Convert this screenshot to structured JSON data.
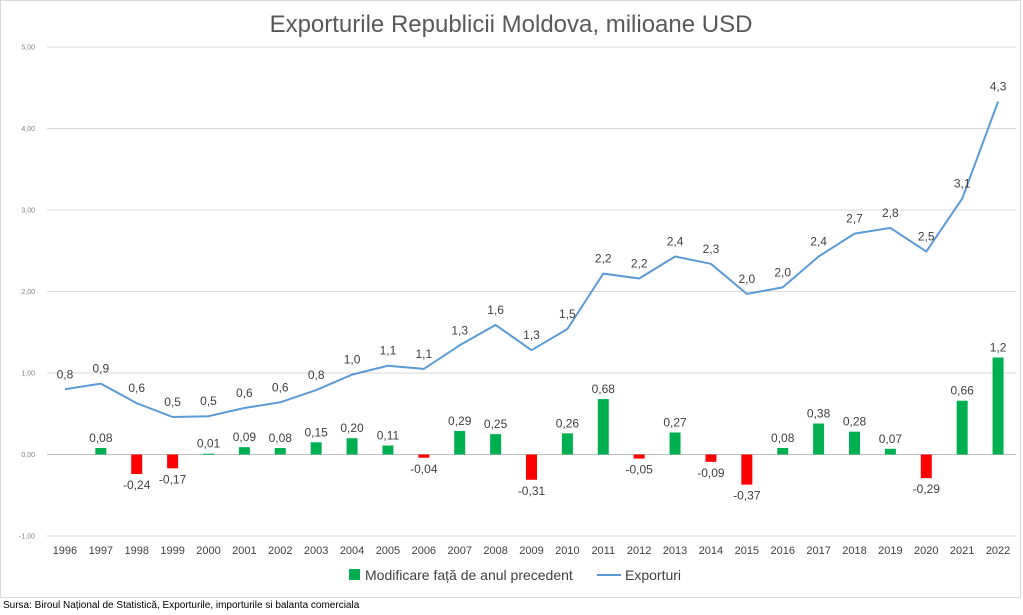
{
  "chart_data": {
    "type": "bar+line",
    "title": "Exporturile Republicii Moldova, milioane USD",
    "categories": [
      "1996",
      "1997",
      "1998",
      "1999",
      "2000",
      "2001",
      "2002",
      "2003",
      "2004",
      "2005",
      "2006",
      "2007",
      "2008",
      "2009",
      "2010",
      "2011",
      "2012",
      "2013",
      "2014",
      "2015",
      "2016",
      "2017",
      "2018",
      "2019",
      "2020",
      "2021",
      "2022"
    ],
    "series": [
      {
        "name": "Modificare față de anul precedent",
        "type": "bar",
        "values": [
          null,
          0.08,
          -0.24,
          -0.17,
          0.01,
          0.09,
          0.08,
          0.15,
          0.2,
          0.11,
          -0.04,
          0.29,
          0.25,
          -0.31,
          0.26,
          0.68,
          -0.05,
          0.27,
          -0.09,
          -0.37,
          0.08,
          0.38,
          0.28,
          0.07,
          -0.29,
          0.66,
          1.19
        ],
        "labels": [
          "",
          "0,08",
          "-0,24",
          "-0,17",
          "0,01",
          "0,09",
          "0,08",
          "0,15",
          "0,20",
          "0,11",
          "-0,04",
          "0,29",
          "0,25",
          "-0,31",
          "0,26",
          "0,68",
          "-0,05",
          "0,27",
          "-0,09",
          "-0,37",
          "0,08",
          "0,38",
          "0,28",
          "0,07",
          "-0,29",
          "0,66",
          "1,2"
        ],
        "color_positive": "#00b050",
        "color_negative": "#ff0000"
      },
      {
        "name": "Exporturi",
        "type": "line",
        "values": [
          0.8,
          0.87,
          0.63,
          0.46,
          0.47,
          0.57,
          0.64,
          0.79,
          0.98,
          1.09,
          1.05,
          1.34,
          1.59,
          1.28,
          1.54,
          2.22,
          2.16,
          2.43,
          2.34,
          1.97,
          2.05,
          2.43,
          2.71,
          2.78,
          2.49,
          3.14,
          4.33
        ],
        "labels": [
          "0,8",
          "0,9",
          "0,6",
          "0,5",
          "0,5",
          "0,6",
          "0,6",
          "0,8",
          "1,0",
          "1,1",
          "1,1",
          "1,3",
          "1,6",
          "1,3",
          "1,5",
          "2,2",
          "2,2",
          "2,4",
          "2,3",
          "2,0",
          "2,0",
          "2,4",
          "2,7",
          "2,8",
          "2,5",
          "3,1",
          "4,3"
        ],
        "color": "#5b9bd5"
      }
    ],
    "ylim": [
      -1,
      5
    ],
    "yticks": [
      -1,
      0,
      1,
      2,
      3,
      4,
      5
    ],
    "ytick_labels": [
      "-1,00",
      "0,00",
      "1,00",
      "2,00",
      "3,00",
      "4,00",
      "5,00"
    ],
    "grid": true,
    "legend": "bottom"
  },
  "source": "Sursa: Biroul Național de Statistică, Exporturile, importurile si balanta comerciala"
}
